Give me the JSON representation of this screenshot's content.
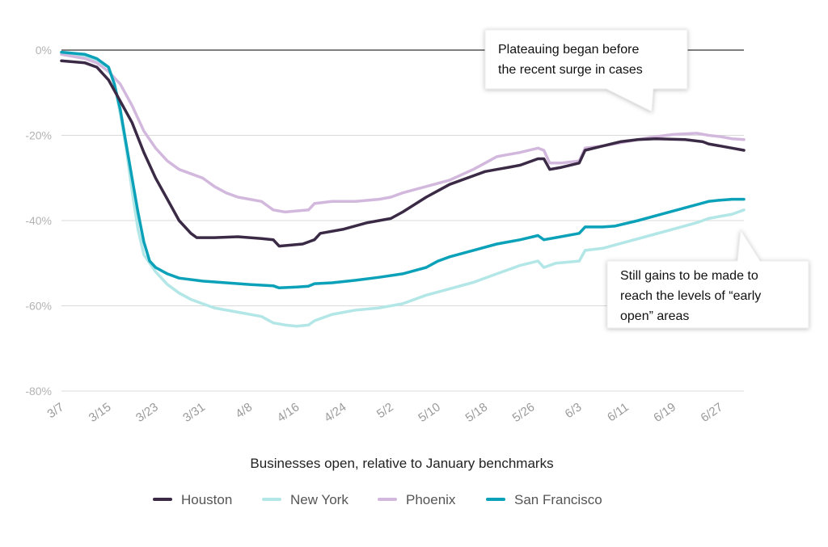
{
  "chart_data": {
    "type": "line",
    "xlabel": "Businesses open, relative to January benchmarks",
    "ylabel": "",
    "ylim": [
      -80,
      0
    ],
    "yticks": [
      "0%",
      "-20%",
      "-40%",
      "-60%",
      "-80%"
    ],
    "ytick_values": [
      0,
      -20,
      -40,
      -60,
      -80
    ],
    "xticks": [
      "3/7",
      "3/15",
      "3/23",
      "3/31",
      "4/8",
      "4/16",
      "4/24",
      "5/2",
      "5/10",
      "5/18",
      "5/26",
      "6/3",
      "6/11",
      "6/19",
      "6/27"
    ],
    "x_range": [
      "3/7",
      "6/27"
    ],
    "grid": true,
    "legend_position": "bottom",
    "annotations": [
      {
        "lines": [
          "Plateauing began before",
          "the recent surge in cases"
        ]
      },
      {
        "lines": [
          "Still gains to be made to",
          "reach the levels of “early",
          "open” areas"
        ]
      }
    ],
    "series": [
      {
        "name": "Houston",
        "color": "#3b2a45",
        "values": [
          [
            0,
            -2.5
          ],
          [
            4,
            -3
          ],
          [
            6,
            -4
          ],
          [
            8,
            -7
          ],
          [
            10,
            -12
          ],
          [
            12,
            -17
          ],
          [
            14,
            -24
          ],
          [
            16,
            -30
          ],
          [
            18,
            -35
          ],
          [
            20,
            -40
          ],
          [
            22,
            -43
          ],
          [
            23,
            -44
          ],
          [
            26,
            -44
          ],
          [
            30,
            -43.8
          ],
          [
            34,
            -44.2
          ],
          [
            36,
            -44.5
          ],
          [
            37,
            -46
          ],
          [
            41,
            -45.5
          ],
          [
            43,
            -44.5
          ],
          [
            44,
            -43
          ],
          [
            48,
            -42
          ],
          [
            52,
            -40.5
          ],
          [
            56,
            -39.5
          ],
          [
            58,
            -38
          ],
          [
            62,
            -34.5
          ],
          [
            64,
            -33
          ],
          [
            66,
            -31.5
          ],
          [
            70,
            -29.5
          ],
          [
            72,
            -28.5
          ],
          [
            74,
            -28
          ],
          [
            76,
            -27.5
          ],
          [
            78,
            -27
          ],
          [
            81,
            -25.5
          ],
          [
            82,
            -25.5
          ],
          [
            83,
            -28
          ],
          [
            85,
            -27.5
          ],
          [
            88,
            -26.5
          ],
          [
            89,
            -23.5
          ],
          [
            92,
            -22.5
          ],
          [
            95,
            -21.5
          ],
          [
            98,
            -21
          ],
          [
            101,
            -20.8
          ],
          [
            106,
            -21
          ],
          [
            109,
            -21.5
          ],
          [
            110,
            -22
          ],
          [
            112,
            -22.5
          ],
          [
            114,
            -23
          ],
          [
            116,
            -23.5
          ]
        ]
      },
      {
        "name": "New York",
        "color": "#b3e6e6",
        "values": [
          [
            0,
            -0.5
          ],
          [
            4,
            -1.5
          ],
          [
            6,
            -2.5
          ],
          [
            8,
            -4
          ],
          [
            9,
            -8
          ],
          [
            10,
            -15
          ],
          [
            11,
            -23
          ],
          [
            12,
            -33
          ],
          [
            13,
            -42
          ],
          [
            14,
            -48
          ],
          [
            16,
            -52
          ],
          [
            18,
            -55
          ],
          [
            20,
            -57
          ],
          [
            22,
            -58.5
          ],
          [
            24,
            -59.5
          ],
          [
            26,
            -60.5
          ],
          [
            30,
            -61.5
          ],
          [
            34,
            -62.5
          ],
          [
            36,
            -64
          ],
          [
            38,
            -64.5
          ],
          [
            40,
            -64.8
          ],
          [
            42,
            -64.5
          ],
          [
            43,
            -63.5
          ],
          [
            46,
            -62
          ],
          [
            50,
            -61
          ],
          [
            54,
            -60.5
          ],
          [
            58,
            -59.5
          ],
          [
            62,
            -57.5
          ],
          [
            66,
            -56
          ],
          [
            70,
            -54.5
          ],
          [
            74,
            -52.5
          ],
          [
            78,
            -50.5
          ],
          [
            81,
            -49.5
          ],
          [
            82,
            -51
          ],
          [
            84,
            -50
          ],
          [
            88,
            -49.5
          ],
          [
            89,
            -47
          ],
          [
            92,
            -46.5
          ],
          [
            96,
            -45
          ],
          [
            100,
            -43.5
          ],
          [
            104,
            -42
          ],
          [
            108,
            -40.5
          ],
          [
            110,
            -39.5
          ],
          [
            114,
            -38.5
          ],
          [
            116,
            -37.5
          ]
        ]
      },
      {
        "name": "Phoenix",
        "color": "#d3b8de",
        "values": [
          [
            0,
            -1
          ],
          [
            4,
            -2
          ],
          [
            6,
            -3
          ],
          [
            8,
            -5
          ],
          [
            10,
            -8
          ],
          [
            12,
            -13
          ],
          [
            14,
            -19
          ],
          [
            16,
            -23
          ],
          [
            18,
            -26
          ],
          [
            20,
            -28
          ],
          [
            24,
            -30
          ],
          [
            26,
            -32
          ],
          [
            28,
            -33.5
          ],
          [
            30,
            -34.5
          ],
          [
            34,
            -35.5
          ],
          [
            36,
            -37.5
          ],
          [
            38,
            -38
          ],
          [
            42,
            -37.5
          ],
          [
            43,
            -36
          ],
          [
            46,
            -35.5
          ],
          [
            50,
            -35.5
          ],
          [
            54,
            -35
          ],
          [
            56,
            -34.5
          ],
          [
            58,
            -33.5
          ],
          [
            62,
            -32
          ],
          [
            66,
            -30.5
          ],
          [
            70,
            -28
          ],
          [
            72,
            -26.5
          ],
          [
            74,
            -25
          ],
          [
            76,
            -24.5
          ],
          [
            78,
            -24
          ],
          [
            81,
            -23
          ],
          [
            82,
            -23.5
          ],
          [
            83,
            -26.5
          ],
          [
            85,
            -26.5
          ],
          [
            88,
            -26
          ],
          [
            89,
            -23
          ],
          [
            92,
            -22.5
          ],
          [
            96,
            -21.5
          ],
          [
            100,
            -20.5
          ],
          [
            104,
            -19.8
          ],
          [
            108,
            -19.5
          ],
          [
            110,
            -20
          ],
          [
            112,
            -20.3
          ],
          [
            114,
            -20.8
          ],
          [
            116,
            -21
          ]
        ]
      },
      {
        "name": "San Francisco",
        "color": "#0ba1b8",
        "values": [
          [
            0,
            -0.5
          ],
          [
            4,
            -1
          ],
          [
            6,
            -2
          ],
          [
            8,
            -4
          ],
          [
            9,
            -8
          ],
          [
            10,
            -14
          ],
          [
            11,
            -22
          ],
          [
            12,
            -30
          ],
          [
            13,
            -38
          ],
          [
            14,
            -45
          ],
          [
            15,
            -49.5
          ],
          [
            16,
            -51
          ],
          [
            18,
            -52.5
          ],
          [
            20,
            -53.5
          ],
          [
            24,
            -54.2
          ],
          [
            28,
            -54.6
          ],
          [
            32,
            -55
          ],
          [
            36,
            -55.3
          ],
          [
            37,
            -55.8
          ],
          [
            40,
            -55.6
          ],
          [
            42,
            -55.4
          ],
          [
            43,
            -54.8
          ],
          [
            46,
            -54.6
          ],
          [
            50,
            -54
          ],
          [
            54,
            -53.3
          ],
          [
            58,
            -52.5
          ],
          [
            62,
            -51
          ],
          [
            64,
            -49.5
          ],
          [
            66,
            -48.5
          ],
          [
            70,
            -47
          ],
          [
            74,
            -45.5
          ],
          [
            78,
            -44.5
          ],
          [
            81,
            -43.5
          ],
          [
            82,
            -44.5
          ],
          [
            84,
            -44
          ],
          [
            88,
            -43
          ],
          [
            89,
            -41.5
          ],
          [
            92,
            -41.5
          ],
          [
            94,
            -41.3
          ],
          [
            98,
            -40
          ],
          [
            102,
            -38.5
          ],
          [
            106,
            -37
          ],
          [
            110,
            -35.5
          ],
          [
            112,
            -35.2
          ],
          [
            114,
            -35
          ],
          [
            116,
            -35
          ]
        ]
      }
    ]
  }
}
